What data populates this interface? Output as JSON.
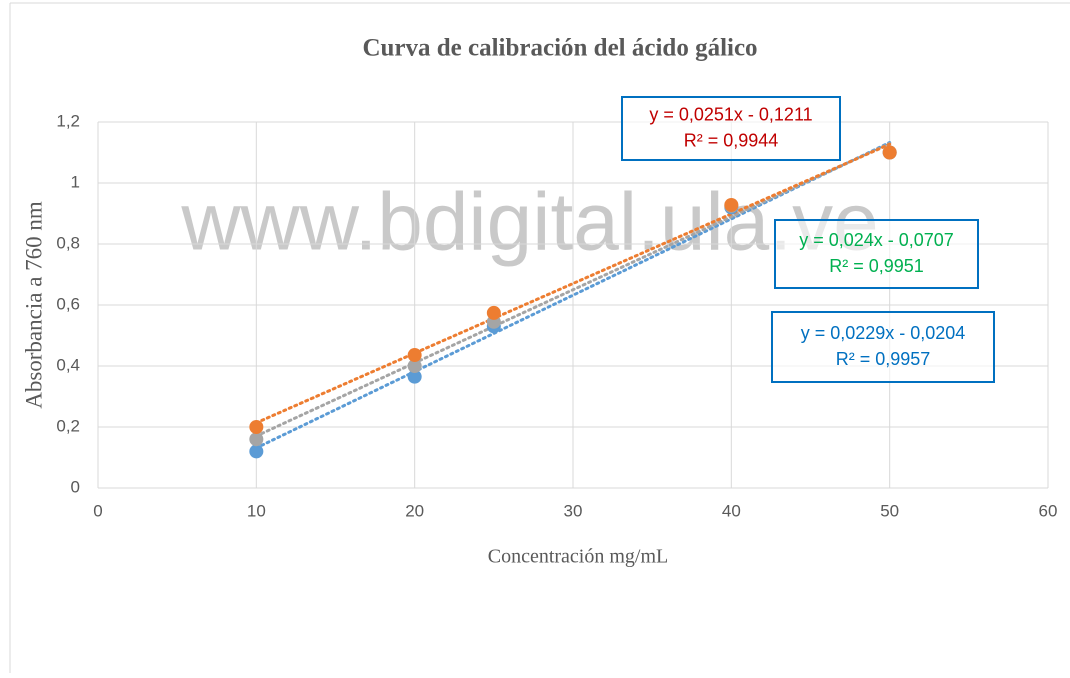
{
  "chart_data": {
    "type": "scatter",
    "title": "Curva de calibración del ácido gálico",
    "watermark": "www.bdigital.ula.ve",
    "x_label": "Concentración mg/mL",
    "y_label": "Absorbancia a 760 nm",
    "xlim": [
      0,
      60
    ],
    "xticks": [
      0,
      10,
      20,
      30,
      40,
      50,
      60
    ],
    "ylim": [
      0,
      1.2
    ],
    "yticks": [
      0,
      {
        "value": 0.2,
        "label": "0,2"
      },
      {
        "value": 0.4,
        "label": "0,4"
      },
      {
        "value": 0.6,
        "label": "0,6"
      },
      {
        "value": 0.8,
        "label": "0,8"
      },
      1,
      {
        "value": 1.2,
        "label": "1,2"
      }
    ],
    "grid": true,
    "series": [
      {
        "color": "#5b9bd5",
        "x": [
          10,
          20,
          25,
          40,
          50
        ],
        "values": [
          0.12,
          0.365,
          0.53,
          0.92,
          1.1
        ]
      },
      {
        "color": "#a5a5a5",
        "x": [
          10,
          20,
          25,
          40,
          50
        ],
        "values": [
          0.16,
          0.4,
          0.545,
          0.925,
          1.1
        ]
      },
      {
        "color": "#ed7d31",
        "x": [
          10,
          20,
          25,
          40,
          50
        ],
        "values": [
          0.2,
          0.436,
          0.574,
          0.928,
          1.1
        ]
      }
    ],
    "annotations": [
      {
        "lines": [
          "y = 0,0251x - 0,1211",
          "R² = 0,9944"
        ],
        "color": "#c00000"
      },
      {
        "lines": [
          "y = 0,024x - 0,0707",
          "R² = 0,9951"
        ],
        "color": "#00b050"
      },
      {
        "lines": [
          "y = 0,0229x - 0,0204",
          "R² = 0,9957"
        ],
        "color": "#0070c0"
      }
    ]
  }
}
